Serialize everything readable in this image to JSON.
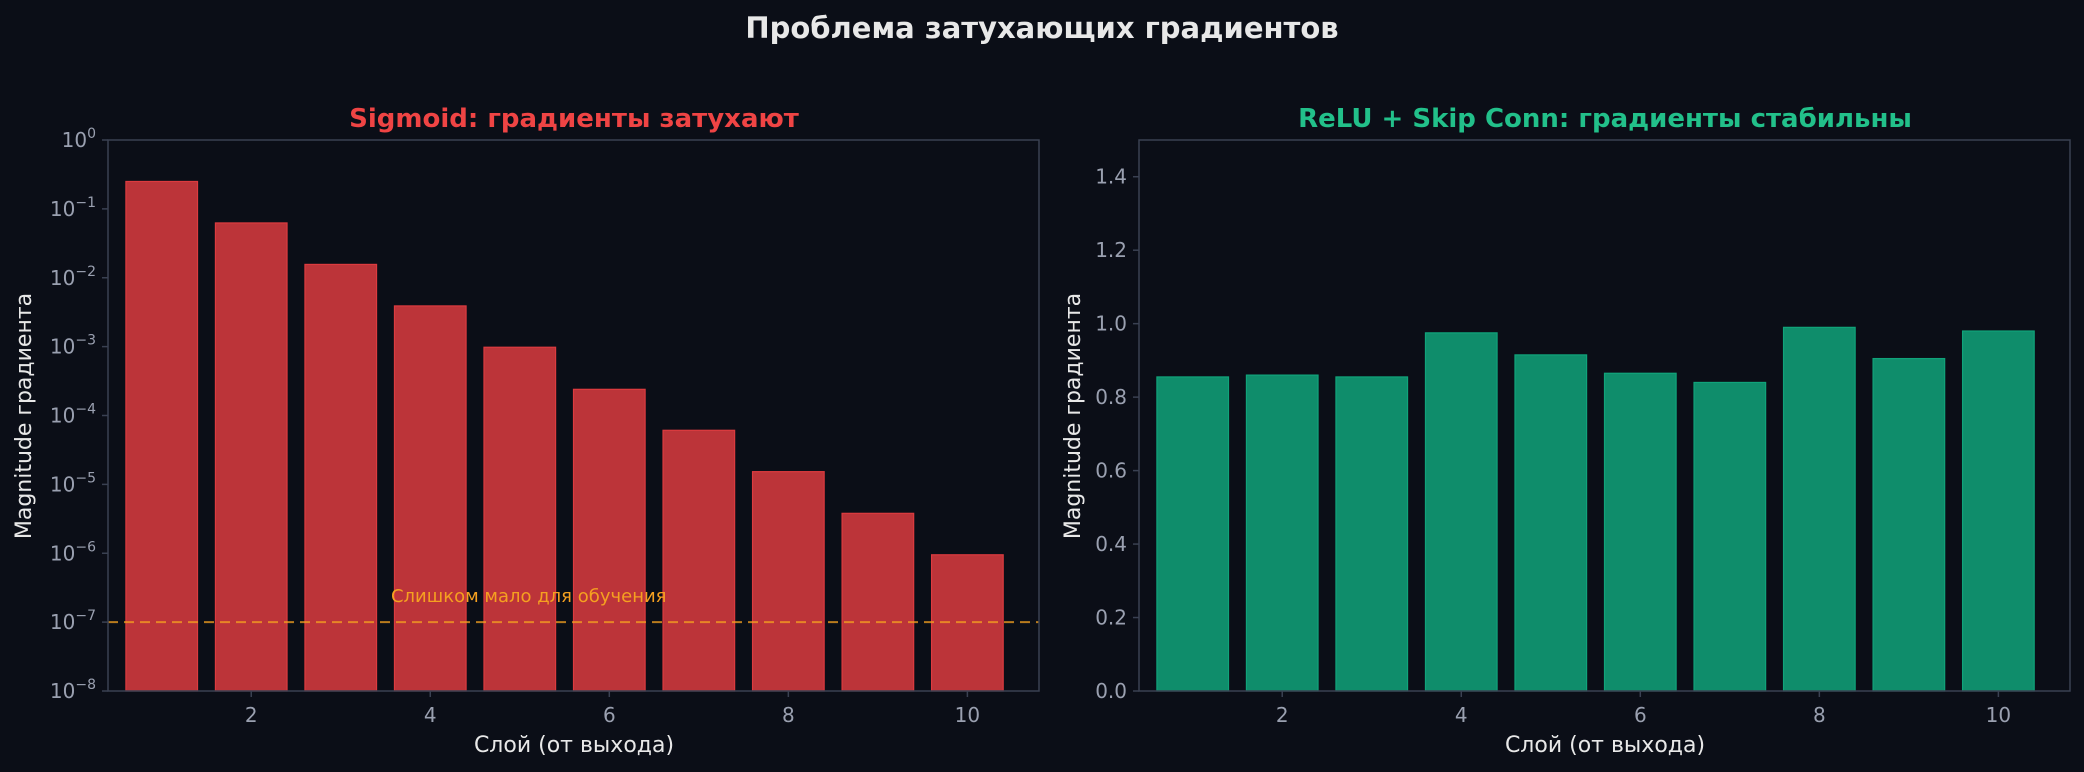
{
  "figure": {
    "title": "Проблема затухающих градиентов"
  },
  "colors": {
    "background": "#0b0e17",
    "sigmoid": "#dc3b3f",
    "relu": "#10a37a",
    "threshold": "#f5a020",
    "sigmoid_title": "#ef4444",
    "relu_title": "#22c08a"
  },
  "chart_data": [
    {
      "type": "bar",
      "title": "Sigmoid: градиенты затухают",
      "xlabel": "Слой (от выхода)",
      "ylabel": "Magnitude градиента",
      "yscale": "log",
      "ylim": [
        1e-08,
        1
      ],
      "x": [
        1,
        2,
        3,
        4,
        5,
        6,
        7,
        8,
        9,
        10
      ],
      "values": [
        0.25,
        0.0625,
        0.015625,
        0.0039,
        0.00098,
        0.00024,
        6.1e-05,
        1.53e-05,
        3.8e-06,
        9.5e-07
      ],
      "xticks": [
        "2",
        "4",
        "6",
        "8",
        "10"
      ],
      "yticks_exp": [
        "−8",
        "−7",
        "−6",
        "−5",
        "−4",
        "−3",
        "−2",
        "−1",
        "0"
      ],
      "threshold": {
        "value": 1e-07,
        "label": "Слишком мало для обучения"
      },
      "grid": false
    },
    {
      "type": "bar",
      "title": "ReLU + Skip Conn: градиенты стабильны",
      "xlabel": "Слой (от выхода)",
      "ylabel": "Magnitude градиента",
      "yscale": "linear",
      "ylim": [
        0,
        1.5
      ],
      "x": [
        1,
        2,
        3,
        4,
        5,
        6,
        7,
        8,
        9,
        10
      ],
      "values": [
        0.855,
        0.86,
        0.855,
        0.975,
        0.915,
        0.865,
        0.84,
        0.99,
        0.905,
        0.98
      ],
      "xticks": [
        "2",
        "4",
        "6",
        "8",
        "10"
      ],
      "yticks": [
        "0.0",
        "0.2",
        "0.4",
        "0.6",
        "0.8",
        "1.0",
        "1.2",
        "1.4"
      ],
      "grid": false
    }
  ]
}
